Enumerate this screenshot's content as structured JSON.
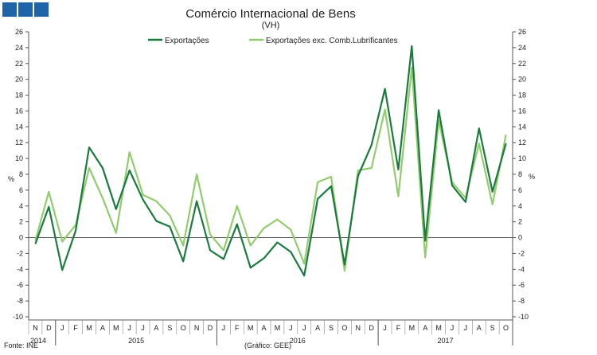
{
  "header": {
    "logo_blocks": 3,
    "logo_color": "#1f63a8"
  },
  "chart_data": {
    "type": "line",
    "title": "Comércio Internacional de Bens",
    "subtitle": "(VH)",
    "ylabel_left": "%",
    "ylabel_right": "%",
    "ylim": [
      -10,
      26
    ],
    "yticks": [
      -10,
      -8,
      -6,
      -4,
      -2,
      0,
      2,
      4,
      6,
      8,
      10,
      12,
      14,
      16,
      18,
      20,
      22,
      24,
      26
    ],
    "grid": false,
    "legend_position": "top-center",
    "categories": [
      "N",
      "D",
      "J",
      "F",
      "M",
      "A",
      "M",
      "J",
      "J",
      "A",
      "S",
      "O",
      "N",
      "D",
      "J",
      "F",
      "M",
      "A",
      "M",
      "J",
      "J",
      "A",
      "S",
      "O",
      "N",
      "D",
      "J",
      "F",
      "M",
      "A",
      "M",
      "J",
      "J",
      "A",
      "S",
      "O"
    ],
    "year_labels": [
      {
        "label": "2014",
        "start": 0,
        "end": 1
      },
      {
        "label": "2015",
        "start": 2,
        "end": 13
      },
      {
        "label": "2016",
        "start": 14,
        "end": 25
      },
      {
        "label": "2017",
        "start": 26,
        "end": 35
      }
    ],
    "series": [
      {
        "name": "Exportações",
        "color": "#1b7a3e",
        "values": [
          -0.8,
          3.9,
          -4.1,
          0.9,
          11.4,
          8.8,
          3.6,
          8.5,
          4.8,
          2.1,
          1.4,
          -3.0,
          4.6,
          -1.6,
          -2.7,
          1.7,
          -3.8,
          -2.6,
          -0.6,
          -1.8,
          -4.8,
          4.9,
          6.5,
          -3.4,
          7.8,
          11.7,
          18.8,
          8.6,
          24.2,
          -0.4,
          16.1,
          6.6,
          4.5,
          13.8,
          5.8,
          11.9
        ]
      },
      {
        "name": "Exportações exc. Comb.Lubrificantes",
        "color": "#92cc6e",
        "values": [
          -0.4,
          5.8,
          -0.5,
          1.6,
          8.8,
          5.0,
          0.6,
          10.8,
          5.4,
          4.6,
          2.8,
          -1.0,
          8.0,
          0.4,
          -1.6,
          4.0,
          -1.0,
          1.2,
          2.3,
          1.0,
          -3.3,
          7.0,
          7.7,
          -4.2,
          8.5,
          8.8,
          16.2,
          5.2,
          21.5,
          -2.5,
          14.8,
          7.0,
          5.0,
          11.9,
          4.2,
          13.0
        ]
      }
    ]
  },
  "footer": {
    "source": "Fonte: INE",
    "credit": "(Gráfico: GEE)"
  }
}
